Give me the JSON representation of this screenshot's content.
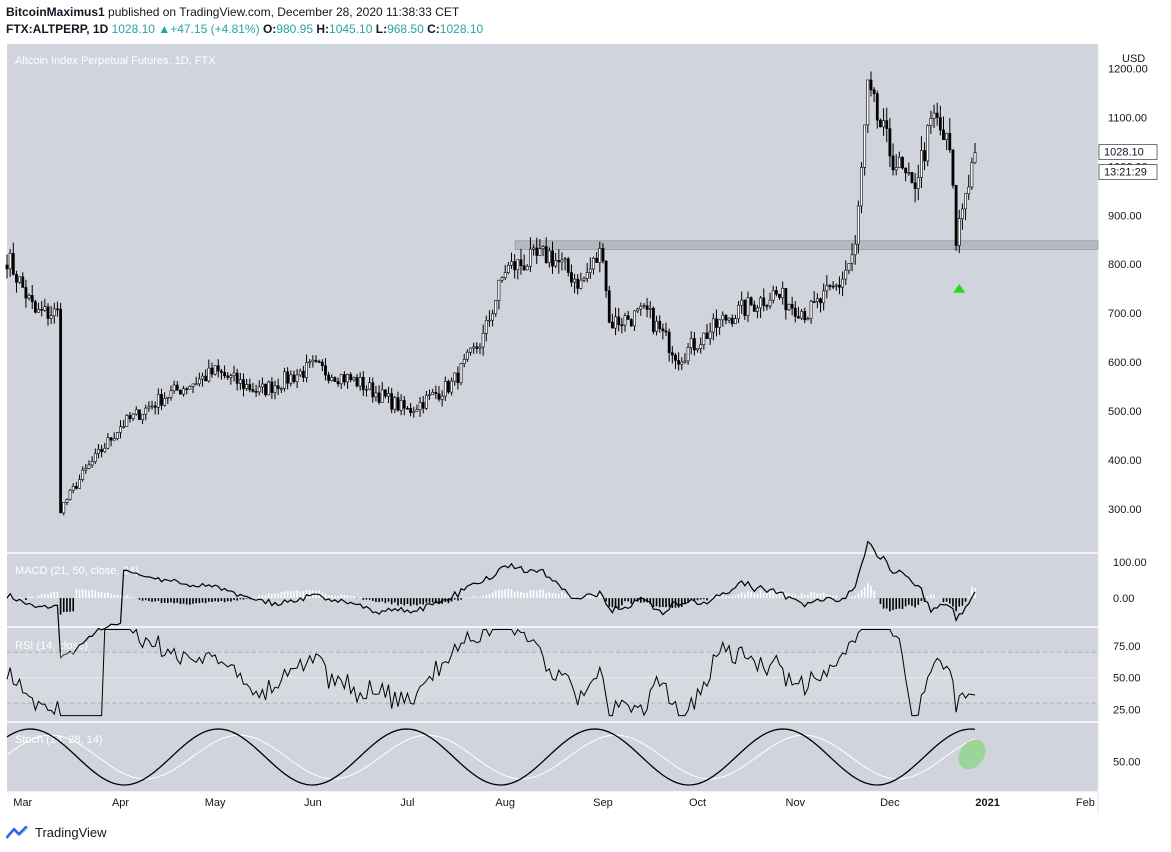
{
  "header": {
    "author": "BitcoinMaximus1",
    "published_text": "published on TradingView.com, December 28, 2020 11:38:33 CET",
    "symbol": "FTX:ALTPERP, 1D",
    "last": "1028.10",
    "change": "+47.15 (+4.81%)",
    "o_label": "O:",
    "o": "980.95",
    "h_label": "H:",
    "h": "1045.10",
    "l_label": "L:",
    "l": "968.50",
    "c_label": "C:",
    "c": "1028.10"
  },
  "footer": {
    "brand": "TradingView"
  },
  "colors": {
    "panel_bg": "#d1d4dc",
    "candle": "#000000",
    "support_zone": "#b6b9c1",
    "signal_arrow": "#1ee01e",
    "highlight": "#8ed48a"
  },
  "chart_data": [
    {
      "type": "candlestick",
      "title": "Altcoin Index Perpetual Futures, 1D, FTX",
      "currency": "USD",
      "x_range": [
        "2020-02-25",
        "2021-02-05"
      ],
      "xticks": [
        "Mar",
        "Apr",
        "May",
        "Jun",
        "Jul",
        "Aug",
        "Sep",
        "Oct",
        "Nov",
        "Dec",
        "2021",
        "Feb"
      ],
      "ylim": [
        210,
        1250
      ],
      "yticks": [
        "1200.00",
        "1100.00",
        "1000.00",
        "900.00",
        "800.00",
        "700.00",
        "600.00",
        "500.00",
        "400.00",
        "300.00"
      ],
      "price_label": "1028.10",
      "countdown_label": "13:21:29",
      "support_zone": [
        830,
        848
      ],
      "buy_signal_date": "2020-12-23",
      "closes_monthly": [
        [
          "2020-02-25",
          815
        ],
        [
          "2020-03-05",
          700
        ],
        [
          "2020-03-12",
          700
        ],
        [
          "2020-03-13",
          300
        ],
        [
          "2020-03-20",
          370
        ],
        [
          "2020-04-01",
          470
        ],
        [
          "2020-04-15",
          530
        ],
        [
          "2020-05-01",
          580
        ],
        [
          "2020-05-15",
          540
        ],
        [
          "2020-06-01",
          590
        ],
        [
          "2020-06-15",
          560
        ],
        [
          "2020-07-01",
          500
        ],
        [
          "2020-07-15",
          555
        ],
        [
          "2020-07-25",
          650
        ],
        [
          "2020-08-01",
          790
        ],
        [
          "2020-08-15",
          820
        ],
        [
          "2020-08-25",
          760
        ],
        [
          "2020-09-01",
          830
        ],
        [
          "2020-09-03",
          680
        ],
        [
          "2020-09-15",
          700
        ],
        [
          "2020-09-25",
          610
        ],
        [
          "2020-10-10",
          690
        ],
        [
          "2020-10-25",
          740
        ],
        [
          "2020-11-05",
          700
        ],
        [
          "2020-11-15",
          760
        ],
        [
          "2020-11-20",
          830
        ],
        [
          "2020-11-24",
          1150
        ],
        [
          "2020-12-01",
          1030
        ],
        [
          "2020-12-08",
          950
        ],
        [
          "2020-12-15",
          1100
        ],
        [
          "2020-12-20",
          1030
        ],
        [
          "2020-12-22",
          850
        ],
        [
          "2020-12-25",
          950
        ],
        [
          "2020-12-28",
          1028.1
        ]
      ]
    },
    {
      "type": "macd",
      "label": "MACD (21, 50, close, 24)",
      "yticks": [
        "100.00",
        "0.00"
      ],
      "ylim": [
        -80,
        125
      ]
    },
    {
      "type": "rsi",
      "label": "RSI (14, close)",
      "yticks": [
        "75.00",
        "50.00",
        "25.00"
      ],
      "ylim": [
        15,
        90
      ],
      "levels": [
        70,
        50,
        30
      ]
    },
    {
      "type": "stochastic",
      "label": "Stoch (14, 28, 14)",
      "yticks": [
        "50.00"
      ],
      "ylim": [
        15,
        95
      ]
    }
  ]
}
